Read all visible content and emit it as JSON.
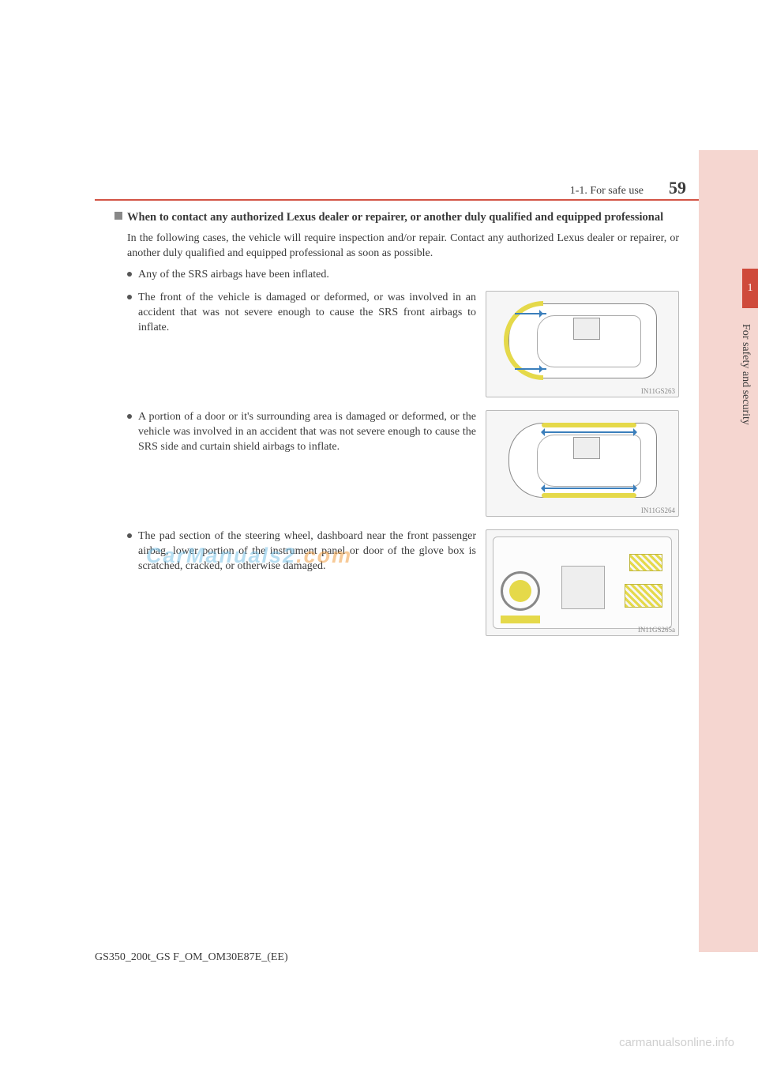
{
  "header": {
    "section_label": "1-1. For safe use",
    "page_number": "59"
  },
  "sidebar": {
    "chapter_number": "1",
    "chapter_label": "For safety and security"
  },
  "content": {
    "section_title": "When to contact any authorized Lexus dealer or repairer, or another duly qualified and equipped professional",
    "intro": "In the following cases, the vehicle will require inspection and/or repair. Contact any authorized Lexus dealer or repairer, or another duly qualified and equipped professional as soon as possible.",
    "bullet_simple": "Any of the SRS airbags have been inflated.",
    "items": [
      {
        "text": "The front of the vehicle is damaged or deformed, or was involved in an accident that was not severe enough to cause the SRS front airbags to inflate.",
        "fig_id": "IN11GS263"
      },
      {
        "text": "A portion of a door or it's surrounding area is damaged or deformed, or the vehicle was involved in an accident that was not severe enough to cause the SRS side and curtain shield airbags to inflate.",
        "fig_id": "IN11GS264"
      },
      {
        "text": "The pad section of the steering wheel, dashboard near the front passenger airbag, lower portion of the instrument panel or door of the glove box is scratched, cracked, or otherwise damaged.",
        "fig_id": "IN11GS265a"
      }
    ]
  },
  "watermark": {
    "part1": "CarManuals2",
    "part2": ".com"
  },
  "footer": {
    "doc_id": "GS350_200t_GS F_OM_OM30E87E_(EE)",
    "site_credit": "carmanualsonline.info"
  }
}
